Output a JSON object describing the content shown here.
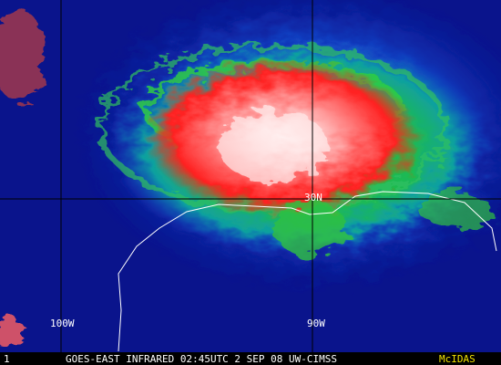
{
  "grid_labels": {
    "lat": [
      "30N"
    ],
    "lon": [
      "100W",
      "90W"
    ]
  },
  "footer": {
    "frame": "1",
    "caption": "GOES-EAST INFRARED 02:45UTC 2 SEP 08 UW-CIMSS",
    "logo": "McIDAS"
  }
}
